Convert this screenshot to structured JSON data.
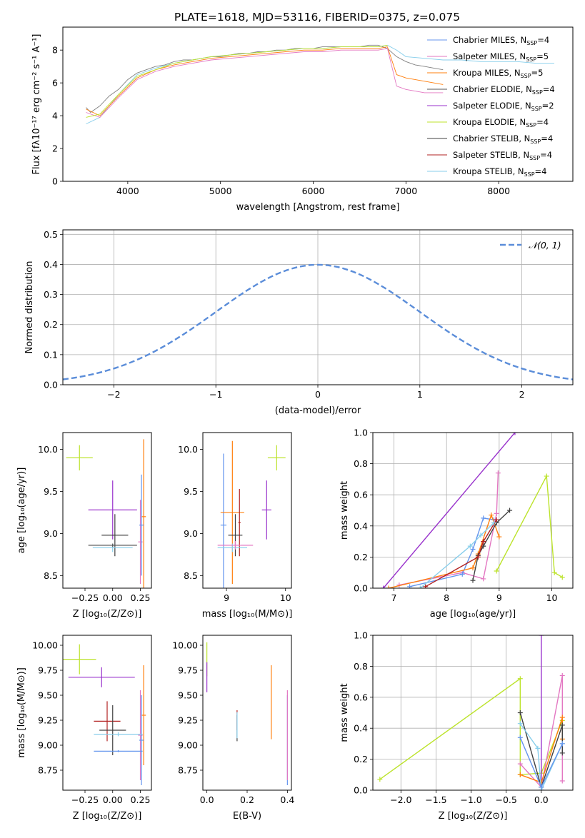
{
  "figure_title": "PLATE=1618, MJD=53116, FIBERID=0375, z=0.075",
  "colors": {
    "chabrier_miles": "#6495ED",
    "salpeter_miles": "#E377C2",
    "kroupa_miles": "#FF7F0E",
    "chabrier_elodie": "#555555",
    "salpeter_elodie": "#9932CC",
    "kroupa_elodie": "#BCE32B",
    "chabrier_stelib": "#404040",
    "salpeter_stelib": "#B22222",
    "kroupa_stelib": "#87CEEB",
    "normal_curve": "#5B8DD9",
    "spectrum_data": "#808080"
  },
  "chart_data": [
    {
      "id": "spectrum",
      "type": "line",
      "title": "PLATE=1618, MJD=53116, FIBERID=0375, z=0.075",
      "xlabel": "wavelength [Angstrom, rest frame]",
      "ylabel": "Flux [fλ10⁻¹⁷ erg cm⁻² s⁻¹ A⁻¹]",
      "xlim": [
        3300,
        8800
      ],
      "ylim": [
        0,
        9.4
      ],
      "xticks": [
        4000,
        5000,
        6000,
        7000,
        8000
      ],
      "yticks": [
        0,
        2,
        4,
        6,
        8
      ],
      "grid": false,
      "legend_position": "top-right",
      "legend": [
        {
          "label": "Chabrier MILES, N",
          "sub": "SSP",
          "tail": "=4",
          "color": "chabrier_miles"
        },
        {
          "label": "Salpeter MILES, N",
          "sub": "SSP",
          "tail": "=5",
          "color": "salpeter_miles"
        },
        {
          "label": "Kroupa MILES, N",
          "sub": "SSP",
          "tail": "=5",
          "color": "kroupa_miles"
        },
        {
          "label": "Chabrier ELODIE, N",
          "sub": "SSP",
          "tail": "=4",
          "color": "chabrier_elodie"
        },
        {
          "label": "Salpeter ELODIE, N",
          "sub": "SSP",
          "tail": "=2",
          "color": "salpeter_elodie"
        },
        {
          "label": "Kroupa ELODIE, N",
          "sub": "SSP",
          "tail": "=4",
          "color": "kroupa_elodie"
        },
        {
          "label": "Chabrier STELIB, N",
          "sub": "SSP",
          "tail": "=4",
          "color": "chabrier_stelib"
        },
        {
          "label": "Salpeter STELIB, N",
          "sub": "SSP",
          "tail": "=4",
          "color": "salpeter_stelib"
        },
        {
          "label": "Kroupa STELIB, N",
          "sub": "SSP",
          "tail": "=4",
          "color": "kroupa_stelib"
        }
      ],
      "series": [
        {
          "color": "spectrum_data",
          "x": [
            3550,
            3600,
            3700,
            3800,
            3900,
            4000,
            4100,
            4200,
            4300,
            4400,
            4500,
            4600,
            4700,
            4800,
            4900,
            5000,
            5100,
            5200,
            5300,
            5400,
            5500,
            5600,
            5700,
            5800,
            5900,
            6000,
            6100,
            6200,
            6300,
            6400,
            6500,
            6600,
            6700,
            6800,
            6900,
            7000,
            7100,
            7200,
            7300,
            7400
          ],
          "y": [
            4.5,
            4.2,
            4.6,
            5.2,
            5.6,
            6.2,
            6.6,
            6.8,
            7.0,
            7.1,
            7.3,
            7.4,
            7.4,
            7.5,
            7.6,
            7.6,
            7.7,
            7.8,
            7.8,
            7.9,
            7.9,
            8.0,
            8.0,
            8.1,
            8.1,
            8.1,
            8.2,
            8.2,
            8.2,
            8.2,
            8.2,
            8.3,
            8.3,
            8.1,
            7.6,
            7.3,
            7.1,
            7.0,
            6.9,
            6.8
          ]
        },
        {
          "color": "kroupa_stelib",
          "x": [
            3550,
            3700,
            3900,
            4100,
            4300,
            4500,
            4700,
            4900,
            5100,
            5300,
            5500,
            5700,
            5900,
            6100,
            6300,
            6500,
            6700,
            6800,
            6900,
            7000,
            7200,
            7400,
            7600,
            7800,
            8000,
            8200,
            8400,
            8600
          ],
          "y": [
            3.5,
            3.9,
            5.3,
            6.5,
            6.9,
            7.2,
            7.4,
            7.6,
            7.7,
            7.8,
            7.9,
            8.0,
            8.1,
            8.1,
            8.2,
            8.2,
            8.2,
            8.3,
            8.0,
            7.6,
            7.5,
            7.4,
            7.4,
            7.3,
            7.3,
            7.3,
            7.2,
            7.2
          ]
        },
        {
          "color": "kroupa_miles",
          "x": [
            3550,
            3700,
            3900,
            4100,
            4300,
            4500,
            4700,
            4900,
            5100,
            5300,
            5500,
            5700,
            5900,
            6100,
            6300,
            6500,
            6700,
            6800,
            6900,
            7000,
            7200,
            7400
          ],
          "y": [
            4.4,
            4.0,
            5.2,
            6.3,
            6.8,
            7.1,
            7.3,
            7.5,
            7.6,
            7.7,
            7.8,
            7.9,
            8.0,
            8.0,
            8.1,
            8.1,
            8.1,
            8.2,
            6.5,
            6.3,
            6.1,
            5.9
          ]
        },
        {
          "color": "salpeter_miles",
          "x": [
            3550,
            3700,
            3900,
            4100,
            4300,
            4500,
            4700,
            4900,
            5100,
            5300,
            5500,
            5700,
            5900,
            6100,
            6300,
            6500,
            6700,
            6800,
            6900,
            7000,
            7200,
            7400
          ],
          "y": [
            4.2,
            3.9,
            5.1,
            6.2,
            6.7,
            7.0,
            7.2,
            7.4,
            7.5,
            7.6,
            7.7,
            7.8,
            7.9,
            7.9,
            8.0,
            8.0,
            8.0,
            8.1,
            5.8,
            5.6,
            5.4,
            5.4
          ]
        },
        {
          "color": "kroupa_elodie",
          "x": [
            3550,
            3700,
            3900,
            4100,
            4300,
            4500,
            4700,
            4900,
            5100,
            5300,
            5500,
            5700,
            5900,
            6100,
            6300,
            6500,
            6700,
            6800
          ],
          "y": [
            3.9,
            4.1,
            5.3,
            6.4,
            6.8,
            7.2,
            7.4,
            7.6,
            7.7,
            7.8,
            7.9,
            8.0,
            8.1,
            8.1,
            8.2,
            8.2,
            8.2,
            8.3
          ]
        }
      ]
    },
    {
      "id": "residuals",
      "type": "line",
      "title": "",
      "xlabel": "(data-model)/error",
      "ylabel": "Normed distribution",
      "xlim": [
        -2.5,
        2.5
      ],
      "ylim": [
        0,
        0.515
      ],
      "xticks": [
        -2,
        -1,
        0,
        1,
        2
      ],
      "yticks": [
        0.0,
        0.1,
        0.2,
        0.3,
        0.4,
        0.5
      ],
      "grid": true,
      "legend_position": "top-right",
      "legend": [
        {
          "label": "𝒩(0, 1)",
          "color": "normal_curve"
        }
      ],
      "curve": {
        "name": "𝒩(0, 1)",
        "mu": 0,
        "sigma": 1
      }
    },
    {
      "id": "age-vs-Z",
      "type": "scatter",
      "xlabel": "Z [log₁₀(Z/Z⊙)]",
      "ylabel": "age  [log₁₀(age/yr)]",
      "xlim": [
        -0.45,
        0.35
      ],
      "ylim": [
        8.35,
        10.2
      ],
      "xticks": [
        -0.25,
        0.0,
        0.25
      ],
      "xtick_labels": [
        "−0.25",
        "0.00",
        "0.25"
      ],
      "yticks": [
        8.5,
        9.0,
        9.5,
        10.0
      ],
      "grid": false,
      "points": [
        {
          "color": "kroupa_elodie",
          "x": -0.3,
          "xerr": 0.12,
          "y": 9.9,
          "yerr": 0.15
        },
        {
          "color": "salpeter_elodie",
          "x": 0.0,
          "xerr": 0.22,
          "y": 9.28,
          "yerr": 0.35
        },
        {
          "color": "chabrier_stelib",
          "x": 0.02,
          "xerr": 0.12,
          "y": 8.98,
          "yerr": 0.25
        },
        {
          "color": "kroupa_miles",
          "x": 0.28,
          "xerr": 0.02,
          "y": 9.2,
          "yerr": 0.92
        },
        {
          "color": "salpeter_miles",
          "x": 0.25,
          "xerr": 0.02,
          "y": 8.9,
          "yerr": 0.5
        },
        {
          "color": "chabrier_miles",
          "x": 0.26,
          "xerr": 0.02,
          "y": 9.1,
          "yerr": 0.6
        },
        {
          "color": "kroupa_stelib",
          "x": 0.0,
          "xerr": 0.18,
          "y": 8.83,
          "yerr": 0.05
        },
        {
          "color": "chabrier_elodie",
          "x": 0.0,
          "xerr": 0.22,
          "y": 8.86,
          "yerr": 0.02
        }
      ]
    },
    {
      "id": "age-vs-mass",
      "type": "scatter",
      "xlabel": "mass [log₁₀(M/M⊙)]",
      "ylabel": "",
      "xlim": [
        8.6,
        10.1
      ],
      "ylim": [
        8.35,
        10.2
      ],
      "xticks": [
        9,
        10
      ],
      "yticks": [
        8.5,
        9.0,
        9.5,
        10.0
      ],
      "grid": false,
      "points": [
        {
          "color": "kroupa_elodie",
          "x": 9.85,
          "xerr": 0.15,
          "y": 9.9,
          "yerr": 0.15
        },
        {
          "color": "salpeter_elodie",
          "x": 9.68,
          "xerr": 0.08,
          "y": 9.28,
          "yerr": 0.35
        },
        {
          "color": "chabrier_miles",
          "x": 8.95,
          "xerr": 0.05,
          "y": 9.1,
          "yerr": 0.85
        },
        {
          "color": "kroupa_miles",
          "x": 9.1,
          "xerr": 0.2,
          "y": 9.25,
          "yerr": 0.85
        },
        {
          "color": "salpeter_stelib",
          "x": 9.22,
          "xerr": 0.02,
          "y": 9.13,
          "yerr": 0.4
        },
        {
          "color": "chabrier_stelib",
          "x": 9.15,
          "xerr": 0.12,
          "y": 8.98,
          "yerr": 0.25
        },
        {
          "color": "kroupa_stelib",
          "x": 9.1,
          "xerr": 0.25,
          "y": 8.83,
          "yerr": 0.05
        },
        {
          "color": "salpeter_miles",
          "x": 9.15,
          "xerr": 0.3,
          "y": 8.86,
          "yerr": 0.05
        }
      ]
    },
    {
      "id": "weight-vs-age",
      "type": "line",
      "xlabel": "age  [log₁₀(age/yr)]",
      "ylabel": "mass weight",
      "xlim": [
        6.6,
        10.4
      ],
      "ylim": [
        0,
        1.0
      ],
      "xticks": [
        7,
        8,
        9,
        10
      ],
      "yticks": [
        0.0,
        0.2,
        0.4,
        0.6,
        0.8,
        1.0
      ],
      "grid": true,
      "series": [
        {
          "color": "salpeter_elodie",
          "x": [
            6.8,
            9.3
          ],
          "y": [
            0.0,
            1.0
          ]
        },
        {
          "color": "salpeter_miles",
          "x": [
            7.1,
            8.3,
            8.7,
            8.95,
            8.98
          ],
          "y": [
            0.02,
            0.1,
            0.06,
            0.48,
            0.74
          ]
        },
        {
          "color": "chabrier_miles",
          "x": [
            7.3,
            8.3,
            8.5,
            8.7,
            8.9
          ],
          "y": [
            0.01,
            0.09,
            0.25,
            0.45,
            0.44
          ]
        },
        {
          "color": "kroupa_miles",
          "x": [
            6.9,
            8.5,
            8.6,
            8.85,
            9.0
          ],
          "y": [
            0.0,
            0.13,
            0.22,
            0.47,
            0.33
          ]
        },
        {
          "color": "chabrier_stelib",
          "x": [
            8.5,
            8.6,
            8.7,
            8.95,
            9.2
          ],
          "y": [
            0.05,
            0.21,
            0.27,
            0.42,
            0.5
          ]
        },
        {
          "color": "salpeter_stelib",
          "x": [
            7.6,
            8.6,
            8.7,
            8.95
          ],
          "y": [
            0.01,
            0.2,
            0.3,
            0.44
          ]
        },
        {
          "color": "kroupa_stelib",
          "x": [
            7.5,
            8.45,
            8.65,
            8.9
          ],
          "y": [
            0.0,
            0.27,
            0.34,
            0.42
          ]
        },
        {
          "color": "kroupa_elodie",
          "x": [
            8.95,
            9.9,
            10.05,
            10.2
          ],
          "y": [
            0.11,
            0.72,
            0.1,
            0.07
          ]
        }
      ]
    },
    {
      "id": "mass-vs-Z",
      "type": "scatter",
      "xlabel": "Z [log₁₀(Z/Z⊙)]",
      "ylabel": "mass [log₁₀(M/M⊙)]",
      "xlim": [
        -0.45,
        0.35
      ],
      "ylim": [
        8.55,
        10.1
      ],
      "xticks": [
        -0.25,
        0.0,
        0.25
      ],
      "xtick_labels": [
        "−0.25",
        "0.00",
        "0.25"
      ],
      "yticks": [
        8.75,
        9.0,
        9.25,
        9.5,
        9.75,
        10.0
      ],
      "grid": false,
      "points": [
        {
          "color": "kroupa_elodie",
          "x": -0.3,
          "xerr": 0.15,
          "y": 9.86,
          "yerr": 0.15
        },
        {
          "color": "salpeter_elodie",
          "x": -0.1,
          "xerr": 0.3,
          "y": 9.68,
          "yerr": 0.1
        },
        {
          "color": "salpeter_stelib",
          "x": -0.05,
          "xerr": 0.12,
          "y": 9.24,
          "yerr": 0.2
        },
        {
          "color": "chabrier_stelib",
          "x": 0.0,
          "xerr": 0.12,
          "y": 9.15,
          "yerr": 0.25
        },
        {
          "color": "kroupa_miles",
          "x": 0.28,
          "xerr": 0.02,
          "y": 9.3,
          "yerr": 0.5
        },
        {
          "color": "salpeter_miles",
          "x": 0.25,
          "xerr": 0.02,
          "y": 9.1,
          "yerr": 0.45
        },
        {
          "color": "chabrier_miles",
          "x": 0.26,
          "xerr": 0.02,
          "y": 9.05,
          "yerr": 0.45
        },
        {
          "color": "kroupa_stelib",
          "x": 0.05,
          "xerr": 0.22,
          "y": 9.11,
          "yerr": 0.02
        },
        {
          "color": "chabrier_miles",
          "x": 0.05,
          "xerr": 0.22,
          "y": 8.94,
          "yerr": 0.01
        }
      ]
    },
    {
      "id": "mass-vs-ebv",
      "type": "scatter",
      "xlabel": "E(B-V)",
      "ylabel": "",
      "xlim": [
        -0.02,
        0.42
      ],
      "ylim": [
        8.55,
        10.1
      ],
      "xticks": [
        0.0,
        0.2,
        0.4
      ],
      "xtick_labels": [
        "0.0",
        "0.2",
        "0.4"
      ],
      "yticks": [
        8.75,
        9.0,
        9.25,
        9.5,
        9.75,
        10.0
      ],
      "grid": false,
      "points": [
        {
          "color": "kroupa_elodie",
          "x": 0.0,
          "xerr": 0.0,
          "y": 9.86,
          "yerr": 0.17
        },
        {
          "color": "salpeter_elodie",
          "x": 0.0,
          "xerr": 0.0,
          "y": 9.68,
          "yerr": 0.15
        },
        {
          "color": "chabrier_stelib",
          "x": 0.15,
          "xerr": 0.0,
          "y": 9.17,
          "yerr": 0.13
        },
        {
          "color": "salpeter_stelib",
          "x": 0.15,
          "xerr": 0.0,
          "y": 9.25,
          "yerr": 0.1
        },
        {
          "color": "kroupa_stelib",
          "x": 0.15,
          "xerr": 0.0,
          "y": 9.2,
          "yerr": 0.13
        },
        {
          "color": "kroupa_miles",
          "x": 0.32,
          "xerr": 0.0,
          "y": 9.43,
          "yerr": 0.37
        },
        {
          "color": "chabrier_miles",
          "x": 0.4,
          "xerr": 0.0,
          "y": 9.05,
          "yerr": 0.45
        },
        {
          "color": "salpeter_miles",
          "x": 0.4,
          "xerr": 0.0,
          "y": 9.1,
          "yerr": 0.45
        }
      ]
    },
    {
      "id": "weight-vs-Z",
      "type": "line",
      "xlabel": "Z [log₁₀(Z/Z⊙)]",
      "ylabel": "mass weight",
      "xlim": [
        -2.4,
        0.45
      ],
      "ylim": [
        0,
        1.0
      ],
      "xticks": [
        -2.0,
        -1.5,
        -1.0,
        -0.5,
        0.0
      ],
      "xtick_labels": [
        "−2.0",
        "−1.5",
        "−1.0",
        "−0.5",
        "0.0"
      ],
      "yticks": [
        0.0,
        0.2,
        0.4,
        0.6,
        0.8,
        1.0
      ],
      "grid": true,
      "series": [
        {
          "color": "kroupa_elodie",
          "x": [
            -2.3,
            -0.3,
            -0.3,
            0.0,
            0.3
          ],
          "y": [
            0.07,
            0.72,
            0.1,
            0.11,
            0.45
          ]
        },
        {
          "color": "salpeter_elodie",
          "x": [
            0.0,
            0.0
          ],
          "y": [
            0.0,
            1.0
          ]
        },
        {
          "color": "salpeter_miles",
          "x": [
            -0.3,
            0.0,
            0.3,
            0.3
          ],
          "y": [
            0.17,
            0.02,
            0.74,
            0.06
          ]
        },
        {
          "color": "kroupa_miles",
          "x": [
            -0.3,
            0.0,
            0.3,
            0.3
          ],
          "y": [
            0.1,
            0.05,
            0.47,
            0.33
          ]
        },
        {
          "color": "chabrier_stelib",
          "x": [
            -0.3,
            0.0,
            0.3,
            0.3
          ],
          "y": [
            0.5,
            0.02,
            0.42,
            0.24
          ]
        },
        {
          "color": "kroupa_stelib",
          "x": [
            -0.3,
            -0.05,
            0.0,
            0.3
          ],
          "y": [
            0.43,
            0.27,
            0.0,
            0.3
          ]
        },
        {
          "color": "chabrier_miles",
          "x": [
            -0.3,
            0.0,
            0.3
          ],
          "y": [
            0.34,
            0.02,
            0.3
          ]
        }
      ]
    }
  ]
}
